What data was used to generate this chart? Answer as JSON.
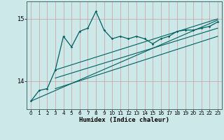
{
  "title": "",
  "xlabel": "Humidex (Indice chaleur)",
  "xlim": [
    -0.5,
    23.5
  ],
  "ylim": [
    13.55,
    15.28
  ],
  "yticks": [
    14,
    15
  ],
  "xticks": [
    0,
    1,
    2,
    3,
    4,
    5,
    6,
    7,
    8,
    9,
    10,
    11,
    12,
    13,
    14,
    15,
    16,
    17,
    18,
    19,
    20,
    21,
    22,
    23
  ],
  "bg_color": "#cce8e8",
  "line_color": "#006060",
  "grid_color": "#c8a0a0",
  "jagged_x": [
    0,
    1,
    2,
    3,
    4,
    5,
    6,
    7,
    8,
    9,
    10,
    11,
    12,
    13,
    14,
    15,
    16,
    17,
    18,
    19,
    20,
    21,
    22,
    23
  ],
  "jagged_y": [
    13.68,
    13.85,
    13.88,
    14.18,
    14.72,
    14.55,
    14.8,
    14.85,
    15.12,
    14.82,
    14.68,
    14.72,
    14.68,
    14.72,
    14.68,
    14.6,
    14.68,
    14.72,
    14.8,
    14.82,
    14.82,
    14.85,
    14.88,
    14.95
  ],
  "line1_x": [
    0,
    23
  ],
  "line1_y": [
    13.68,
    14.98
  ],
  "line2_x": [
    3,
    23
  ],
  "line2_y": [
    14.18,
    15.0
  ],
  "line3_x": [
    3,
    23
  ],
  "line3_y": [
    13.88,
    14.72
  ],
  "line4_x": [
    3,
    23
  ],
  "line4_y": [
    14.05,
    14.85
  ]
}
